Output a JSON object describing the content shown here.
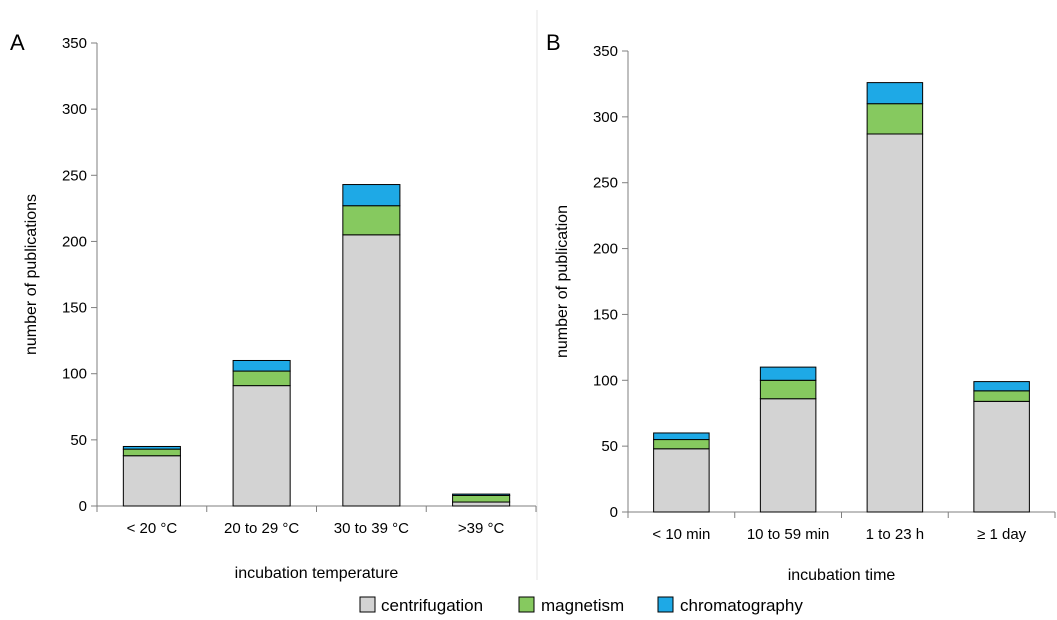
{
  "legend": [
    {
      "name": "centrifugation",
      "color": "#d3d3d3"
    },
    {
      "name": "magnetism",
      "color": "#86c95f"
    },
    {
      "name": "chromatography",
      "color": "#1ea9e6"
    }
  ],
  "chart_data": [
    {
      "type": "bar",
      "stacked": true,
      "panel": "A",
      "xlabel": "incubation temperature",
      "ylabel": "number of publications",
      "ylim": [
        0,
        350
      ],
      "yticks": [
        0,
        50,
        100,
        150,
        200,
        250,
        300,
        350
      ],
      "categories": [
        "< 20 °C",
        "20 to 29 °C",
        "30 to 39 °C",
        ">39 °C"
      ],
      "series": [
        {
          "name": "centrifugation",
          "values": [
            38,
            91,
            205,
            3
          ]
        },
        {
          "name": "magnetism",
          "values": [
            5,
            11,
            22,
            5
          ]
        },
        {
          "name": "chromatography",
          "values": [
            2,
            8,
            16,
            1
          ]
        }
      ],
      "grid": false
    },
    {
      "type": "bar",
      "stacked": true,
      "panel": "B",
      "xlabel": "incubation time",
      "ylabel": "number of publication",
      "ylim": [
        0,
        350
      ],
      "yticks": [
        0,
        50,
        100,
        150,
        200,
        250,
        300,
        350
      ],
      "categories": [
        "< 10 min",
        "10 to 59 min",
        "1 to 23 h",
        "≥ 1 day"
      ],
      "series": [
        {
          "name": "centrifugation",
          "values": [
            48,
            86,
            287,
            84
          ]
        },
        {
          "name": "magnetism",
          "values": [
            7,
            14,
            23,
            8
          ]
        },
        {
          "name": "chromatography",
          "values": [
            5,
            10,
            16,
            7
          ]
        }
      ],
      "grid": false
    }
  ]
}
